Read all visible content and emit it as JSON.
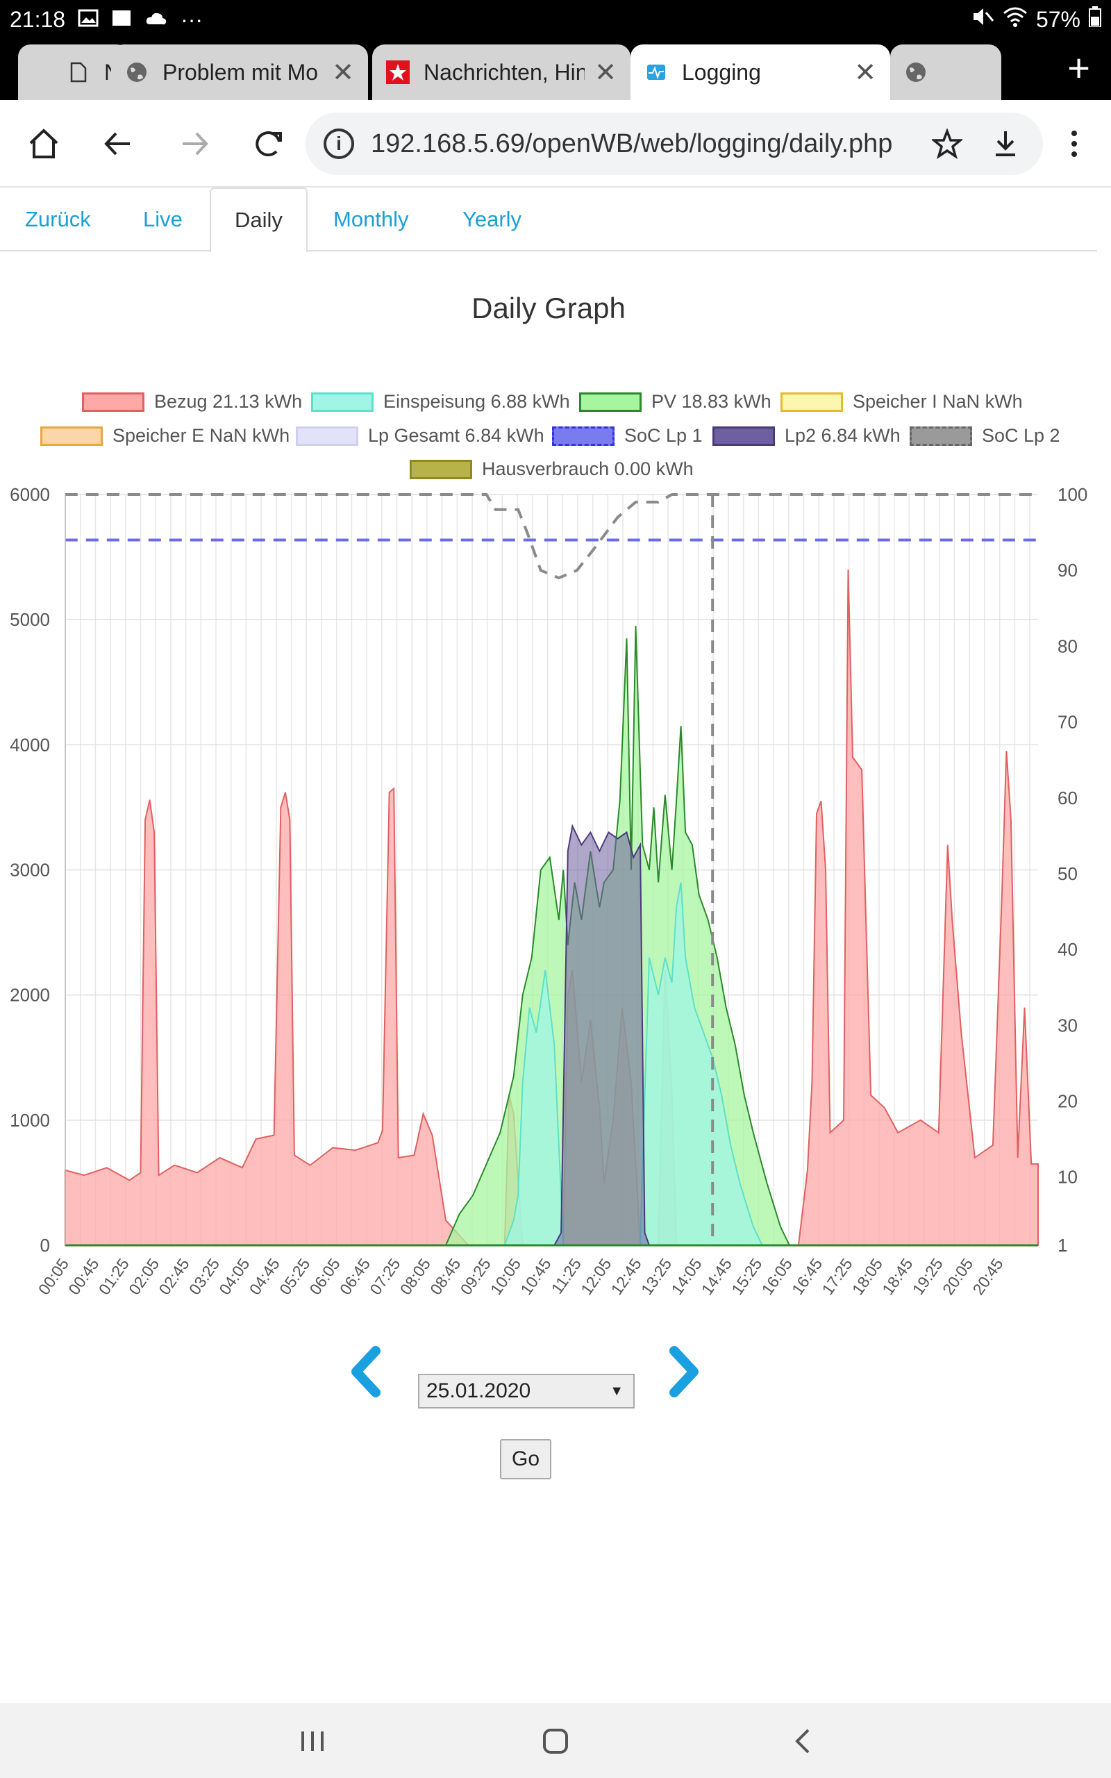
{
  "status_bar": {
    "time": "21:18",
    "more": "···",
    "battery": "57%"
  },
  "browser": {
    "tabs": [
      {
        "title": "Ne",
        "favicon": "page-icon"
      },
      {
        "title": "Problem mit Mo",
        "favicon": "globe-icon"
      },
      {
        "title": "Nachrichten, Hin",
        "favicon": "stern-icon"
      },
      {
        "title": "Logging",
        "favicon": "logging-icon"
      },
      {
        "title": "",
        "favicon": "globe-icon"
      }
    ],
    "url": "192.168.5.69/openWB/web/logging/daily.php"
  },
  "nav": {
    "back": "Zurück",
    "live": "Live",
    "daily": "Daily",
    "monthly": "Monthly",
    "yearly": "Yearly"
  },
  "page": {
    "title": "Daily Graph"
  },
  "legend": [
    {
      "label": "Bezug 21.13 kWh",
      "fill": "#ffa8a8",
      "stroke": "#e06060",
      "dashed": false
    },
    {
      "label": "Einspeisung 6.88 kWh",
      "fill": "#9ff5e6",
      "stroke": "#5fe0c8",
      "dashed": false
    },
    {
      "label": "PV 18.83 kWh",
      "fill": "#a8f5a0",
      "stroke": "#2a8a2a",
      "dashed": false
    },
    {
      "label": "Speicher I NaN kWh",
      "fill": "#fbf6b0",
      "stroke": "#e8b830",
      "dashed": false
    },
    {
      "label": "Speicher E NaN kWh",
      "fill": "#fbd6a8",
      "stroke": "#e8a840",
      "dashed": false
    },
    {
      "label": "Lp Gesamt 6.84 kWh",
      "fill": "#e2e2f8",
      "stroke": "#cfcfef",
      "dashed": false
    },
    {
      "label": "SoC Lp 1",
      "fill": "#7b7bf0",
      "stroke": "#3333dd",
      "dashed": true
    },
    {
      "label": "Lp2 6.84 kWh",
      "fill": "#6e5f9e",
      "stroke": "#4a3a7a",
      "dashed": false
    },
    {
      "label": "SoC Lp 2",
      "fill": "#9a9a9a",
      "stroke": "#666666",
      "dashed": true
    },
    {
      "label": "Hausverbrauch 0.00 kWh",
      "fill": "#b7b24a",
      "stroke": "#8f8a20",
      "dashed": false
    }
  ],
  "chart_data": {
    "type": "area",
    "left_axis": {
      "ticks": [
        0,
        1000,
        2000,
        3000,
        4000,
        5000,
        6000
      ],
      "ylim": [
        0,
        6000
      ]
    },
    "right_axis": {
      "ticks": [
        1,
        10,
        20,
        30,
        40,
        50,
        60,
        70,
        80,
        90,
        100
      ],
      "ylim": [
        1,
        100
      ]
    },
    "x_ticks": [
      "00:05",
      "00:45",
      "01:25",
      "02:05",
      "02:45",
      "03:25",
      "04:05",
      "04:45",
      "05:25",
      "06:05",
      "06:45",
      "07:25",
      "08:05",
      "08:45",
      "09:25",
      "10:05",
      "10:45",
      "11:25",
      "12:05",
      "12:45",
      "13:25",
      "14:05",
      "14:45",
      "15:25",
      "16:05",
      "16:45",
      "17:25",
      "18:05",
      "18:45",
      "19:25",
      "20:05",
      "20:45"
    ],
    "hours_range": [
      0.083,
      21.6
    ],
    "series": [
      {
        "name": "Bezug",
        "axis": "left",
        "points": [
          [
            0.08,
            600
          ],
          [
            0.5,
            560
          ],
          [
            1.0,
            620
          ],
          [
            1.5,
            520
          ],
          [
            1.75,
            580
          ],
          [
            1.85,
            3400
          ],
          [
            1.95,
            3560
          ],
          [
            2.05,
            3300
          ],
          [
            2.15,
            560
          ],
          [
            2.5,
            640
          ],
          [
            3.0,
            580
          ],
          [
            3.5,
            700
          ],
          [
            4.0,
            620
          ],
          [
            4.3,
            850
          ],
          [
            4.7,
            880
          ],
          [
            4.85,
            3500
          ],
          [
            4.95,
            3620
          ],
          [
            5.05,
            3400
          ],
          [
            5.15,
            720
          ],
          [
            5.5,
            640
          ],
          [
            6.0,
            780
          ],
          [
            6.5,
            760
          ],
          [
            7.0,
            820
          ],
          [
            7.1,
            920
          ],
          [
            7.25,
            3620
          ],
          [
            7.35,
            3650
          ],
          [
            7.45,
            700
          ],
          [
            7.8,
            720
          ],
          [
            8.0,
            1050
          ],
          [
            8.2,
            880
          ],
          [
            8.5,
            200
          ],
          [
            9.0,
            0
          ],
          [
            9.8,
            0
          ],
          [
            9.9,
            1200
          ],
          [
            10.0,
            1050
          ],
          [
            10.2,
            0
          ],
          [
            11.1,
            0
          ],
          [
            11.2,
            2000
          ],
          [
            11.3,
            2200
          ],
          [
            11.5,
            1300
          ],
          [
            11.7,
            1800
          ],
          [
            11.9,
            1100
          ],
          [
            12.0,
            500
          ],
          [
            12.2,
            1000
          ],
          [
            12.4,
            1900
          ],
          [
            12.6,
            1300
          ],
          [
            12.8,
            0
          ],
          [
            13.2,
            0
          ],
          [
            13.35,
            2200
          ],
          [
            13.5,
            1200
          ],
          [
            13.6,
            0
          ],
          [
            16.3,
            0
          ],
          [
            16.5,
            600
          ],
          [
            16.6,
            1300
          ],
          [
            16.7,
            3450
          ],
          [
            16.8,
            3550
          ],
          [
            16.9,
            3000
          ],
          [
            17.0,
            900
          ],
          [
            17.3,
            1000
          ],
          [
            17.4,
            5400
          ],
          [
            17.5,
            3900
          ],
          [
            17.7,
            3800
          ],
          [
            17.9,
            1200
          ],
          [
            18.2,
            1100
          ],
          [
            18.5,
            900
          ],
          [
            19.0,
            1000
          ],
          [
            19.4,
            900
          ],
          [
            19.6,
            3200
          ],
          [
            19.7,
            2600
          ],
          [
            19.9,
            1700
          ],
          [
            20.2,
            700
          ],
          [
            20.6,
            800
          ],
          [
            20.8,
            2800
          ],
          [
            20.9,
            3950
          ],
          [
            21.0,
            3400
          ],
          [
            21.15,
            700
          ],
          [
            21.3,
            1900
          ],
          [
            21.45,
            650
          ],
          [
            21.6,
            650
          ]
        ]
      },
      {
        "name": "PV",
        "axis": "left",
        "points": [
          [
            8.5,
            0
          ],
          [
            8.8,
            250
          ],
          [
            9.1,
            400
          ],
          [
            9.4,
            650
          ],
          [
            9.7,
            900
          ],
          [
            10.0,
            1350
          ],
          [
            10.2,
            2000
          ],
          [
            10.4,
            2300
          ],
          [
            10.6,
            3000
          ],
          [
            10.8,
            3100
          ],
          [
            11.0,
            2600
          ],
          [
            11.1,
            3000
          ],
          [
            11.2,
            2400
          ],
          [
            11.35,
            2900
          ],
          [
            11.5,
            2600
          ],
          [
            11.7,
            3150
          ],
          [
            11.9,
            2700
          ],
          [
            12.0,
            2900
          ],
          [
            12.2,
            3000
          ],
          [
            12.35,
            3550
          ],
          [
            12.5,
            4850
          ],
          [
            12.6,
            3000
          ],
          [
            12.7,
            4950
          ],
          [
            12.85,
            3200
          ],
          [
            13.0,
            3000
          ],
          [
            13.1,
            3500
          ],
          [
            13.2,
            2900
          ],
          [
            13.35,
            3600
          ],
          [
            13.5,
            3000
          ],
          [
            13.6,
            3550
          ],
          [
            13.7,
            4150
          ],
          [
            13.8,
            3300
          ],
          [
            13.95,
            3200
          ],
          [
            14.1,
            2800
          ],
          [
            14.3,
            2600
          ],
          [
            14.5,
            2300
          ],
          [
            14.7,
            1900
          ],
          [
            14.9,
            1600
          ],
          [
            15.1,
            1200
          ],
          [
            15.3,
            900
          ],
          [
            15.6,
            500
          ],
          [
            15.9,
            150
          ],
          [
            16.1,
            0
          ]
        ]
      },
      {
        "name": "Einspeisung",
        "axis": "left",
        "points": [
          [
            9.8,
            0
          ],
          [
            10.0,
            200
          ],
          [
            10.1,
            400
          ],
          [
            10.2,
            1300
          ],
          [
            10.35,
            1900
          ],
          [
            10.5,
            1700
          ],
          [
            10.7,
            2200
          ],
          [
            10.9,
            1600
          ],
          [
            11.1,
            0
          ],
          [
            12.8,
            0
          ],
          [
            12.9,
            1200
          ],
          [
            13.0,
            2300
          ],
          [
            13.2,
            2000
          ],
          [
            13.35,
            2300
          ],
          [
            13.5,
            2100
          ],
          [
            13.6,
            2700
          ],
          [
            13.7,
            2900
          ],
          [
            13.8,
            2300
          ],
          [
            14.0,
            1900
          ],
          [
            14.2,
            1700
          ],
          [
            14.4,
            1500
          ],
          [
            14.6,
            1200
          ],
          [
            14.8,
            800
          ],
          [
            15.0,
            500
          ],
          [
            15.3,
            150
          ],
          [
            15.5,
            0
          ]
        ]
      },
      {
        "name": "Lp2",
        "axis": "left",
        "points": [
          [
            10.9,
            0
          ],
          [
            11.05,
            100
          ],
          [
            11.2,
            3150
          ],
          [
            11.3,
            3350
          ],
          [
            11.5,
            3200
          ],
          [
            11.7,
            3300
          ],
          [
            11.9,
            3150
          ],
          [
            12.1,
            3300
          ],
          [
            12.3,
            3250
          ],
          [
            12.5,
            3300
          ],
          [
            12.65,
            3100
          ],
          [
            12.8,
            3200
          ],
          [
            12.9,
            100
          ],
          [
            13.0,
            0
          ]
        ]
      },
      {
        "name": "SoC Lp 1",
        "axis": "right",
        "points": [
          [
            0.08,
            94
          ],
          [
            21.6,
            94
          ]
        ]
      },
      {
        "name": "SoC Lp 2",
        "axis": "right",
        "points": [
          [
            0.08,
            100
          ],
          [
            9.4,
            100
          ],
          [
            9.6,
            98
          ],
          [
            10.1,
            98
          ],
          [
            10.3,
            95
          ],
          [
            10.6,
            90
          ],
          [
            11.0,
            89
          ],
          [
            11.4,
            90
          ],
          [
            11.8,
            93
          ],
          [
            12.3,
            97
          ],
          [
            12.7,
            99
          ],
          [
            13.2,
            99
          ],
          [
            13.5,
            100
          ],
          [
            21.6,
            100
          ]
        ]
      }
    ],
    "vertical_marker_hour": 14.4
  },
  "date_selector": {
    "value": "25.01.2020"
  },
  "go_button": "Go"
}
